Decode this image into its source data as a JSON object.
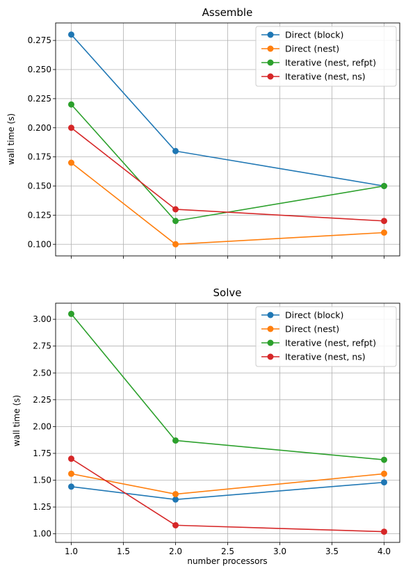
{
  "chart_data": [
    {
      "type": "line",
      "title": "Assemble",
      "xlabel": "",
      "ylabel": "wall time (s)",
      "x": [
        1.0,
        2.0,
        4.0
      ],
      "xlim": [
        0.85,
        4.15
      ],
      "ylim": [
        0.09,
        0.29
      ],
      "xticks": [
        1.0,
        1.5,
        2.0,
        2.5,
        3.0,
        3.5,
        4.0
      ],
      "xtick_labels": [],
      "yticks": [
        0.1,
        0.125,
        0.15,
        0.175,
        0.2,
        0.225,
        0.25,
        0.275
      ],
      "ytick_labels": [
        "0.100",
        "0.125",
        "0.150",
        "0.175",
        "0.200",
        "0.225",
        "0.250",
        "0.275"
      ],
      "grid": true,
      "legend_position": "top-right",
      "series": [
        {
          "name": "Direct (block)",
          "color": "#1f77b4",
          "values": [
            0.28,
            0.18,
            0.15
          ]
        },
        {
          "name": "Direct (nest)",
          "color": "#ff7f0e",
          "values": [
            0.17,
            0.1,
            0.11
          ]
        },
        {
          "name": "Iterative (nest, refpt)",
          "color": "#2ca02c",
          "values": [
            0.22,
            0.12,
            0.15
          ]
        },
        {
          "name": "Iterative (nest, ns)",
          "color": "#d62728",
          "values": [
            0.2,
            0.13,
            0.12
          ]
        }
      ]
    },
    {
      "type": "line",
      "title": "Solve",
      "xlabel": "number processors",
      "ylabel": "wall time (s)",
      "x": [
        1.0,
        2.0,
        4.0
      ],
      "xlim": [
        0.85,
        4.15
      ],
      "ylim": [
        0.92,
        3.15
      ],
      "xticks": [
        1.0,
        1.5,
        2.0,
        2.5,
        3.0,
        3.5,
        4.0
      ],
      "xtick_labels": [
        "1.0",
        "1.5",
        "2.0",
        "2.5",
        "3.0",
        "3.5",
        "4.0"
      ],
      "yticks": [
        1.0,
        1.25,
        1.5,
        1.75,
        2.0,
        2.25,
        2.5,
        2.75,
        3.0
      ],
      "ytick_labels": [
        "1.00",
        "1.25",
        "1.50",
        "1.75",
        "2.00",
        "2.25",
        "2.50",
        "2.75",
        "3.00"
      ],
      "grid": true,
      "legend_position": "top-right",
      "series": [
        {
          "name": "Direct (block)",
          "color": "#1f77b4",
          "values": [
            1.44,
            1.32,
            1.48
          ]
        },
        {
          "name": "Direct (nest)",
          "color": "#ff7f0e",
          "values": [
            1.56,
            1.37,
            1.56
          ]
        },
        {
          "name": "Iterative (nest, refpt)",
          "color": "#2ca02c",
          "values": [
            3.05,
            1.87,
            1.69
          ]
        },
        {
          "name": "Iterative (nest, ns)",
          "color": "#d62728",
          "values": [
            1.7,
            1.08,
            1.02
          ]
        }
      ]
    }
  ]
}
